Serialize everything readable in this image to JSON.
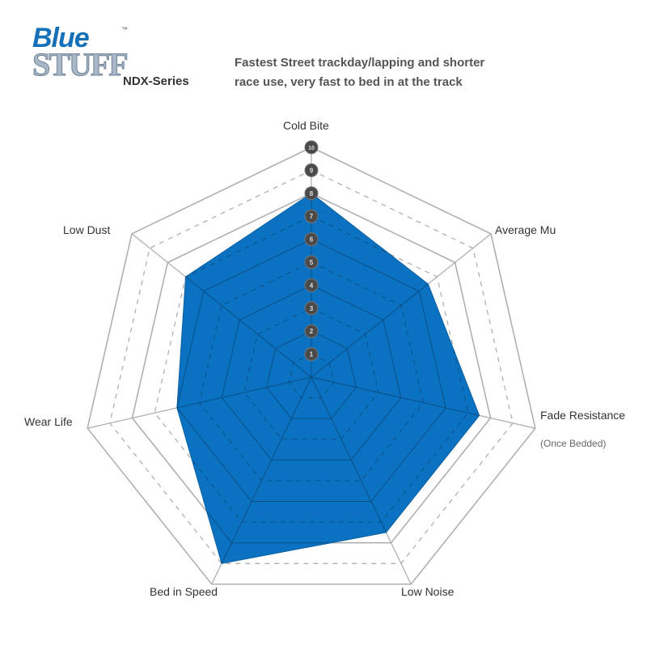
{
  "logo": {
    "word1": "Blue",
    "word2": "STUFF",
    "tm": "™"
  },
  "header": {
    "series": "NDX-Series",
    "description_line1": "Fastest Street trackday/lapping and shorter",
    "description_line2": "race use, very fast to bed in at the track"
  },
  "chart_data": {
    "type": "radar",
    "axes": [
      "Cold Bite",
      "Average Mu",
      "Fade Resistance",
      "Low Noise",
      "Bed in Speed",
      "Wear Life",
      "Low Dust"
    ],
    "axis_note": {
      "Fade Resistance": "(Once Bedded)"
    },
    "values": [
      8,
      6.5,
      7.5,
      7.5,
      9,
      6,
      7
    ],
    "range": [
      0,
      10
    ],
    "tick_labels": [
      "1",
      "2",
      "3",
      "4",
      "5",
      "6",
      "7",
      "8",
      "9",
      "10"
    ],
    "fill_color": "#0a72c0",
    "grid": true
  }
}
